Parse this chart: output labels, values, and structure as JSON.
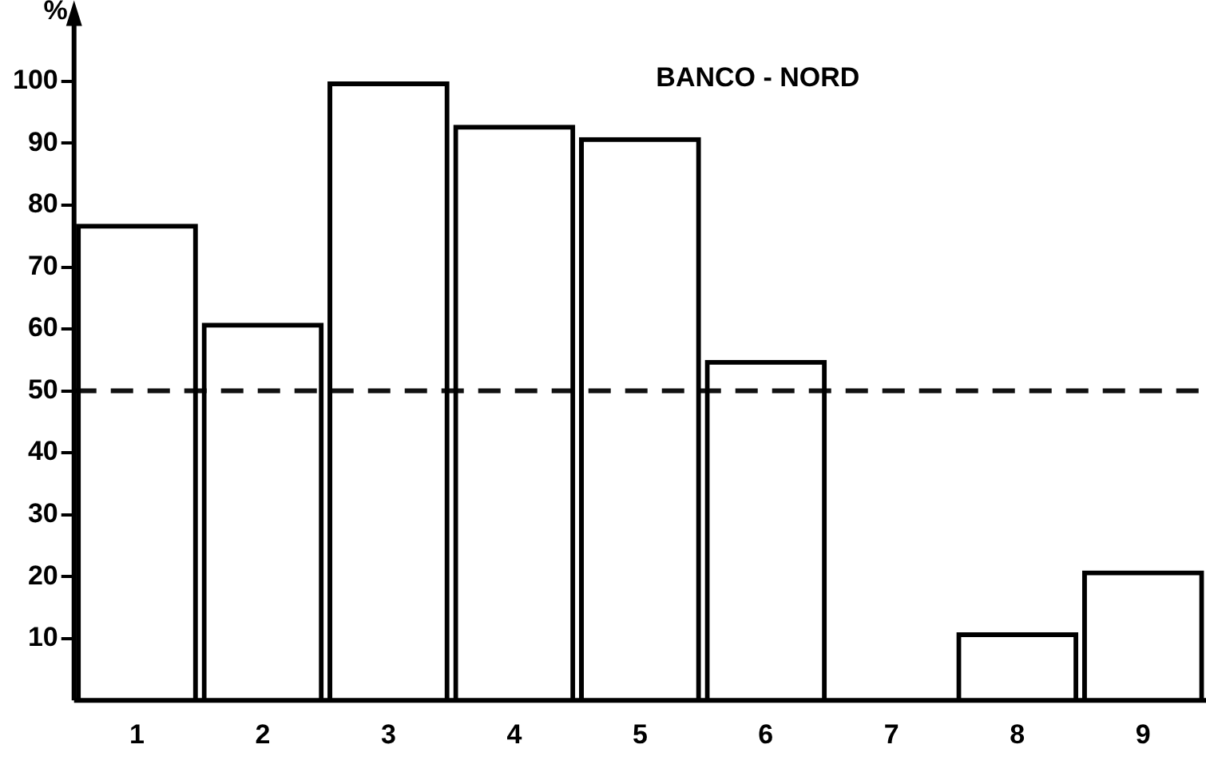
{
  "chart_data": {
    "type": "bar",
    "title": "BANCO - NORD",
    "ylabel": "%",
    "categories": [
      "1",
      "2",
      "3",
      "4",
      "5",
      "6",
      "7",
      "8",
      "9"
    ],
    "values": [
      77,
      61,
      100,
      93,
      91,
      55,
      0,
      11,
      21
    ],
    "color": "#000000",
    "ylim": [
      0,
      110
    ],
    "yticks": [
      10,
      20,
      30,
      40,
      50,
      60,
      70,
      80,
      90,
      100
    ],
    "ref_lines": [
      {
        "axis": "y",
        "value": 50,
        "line_style": "dashed",
        "color": "#111111"
      }
    ],
    "grid": false,
    "legend": false
  }
}
